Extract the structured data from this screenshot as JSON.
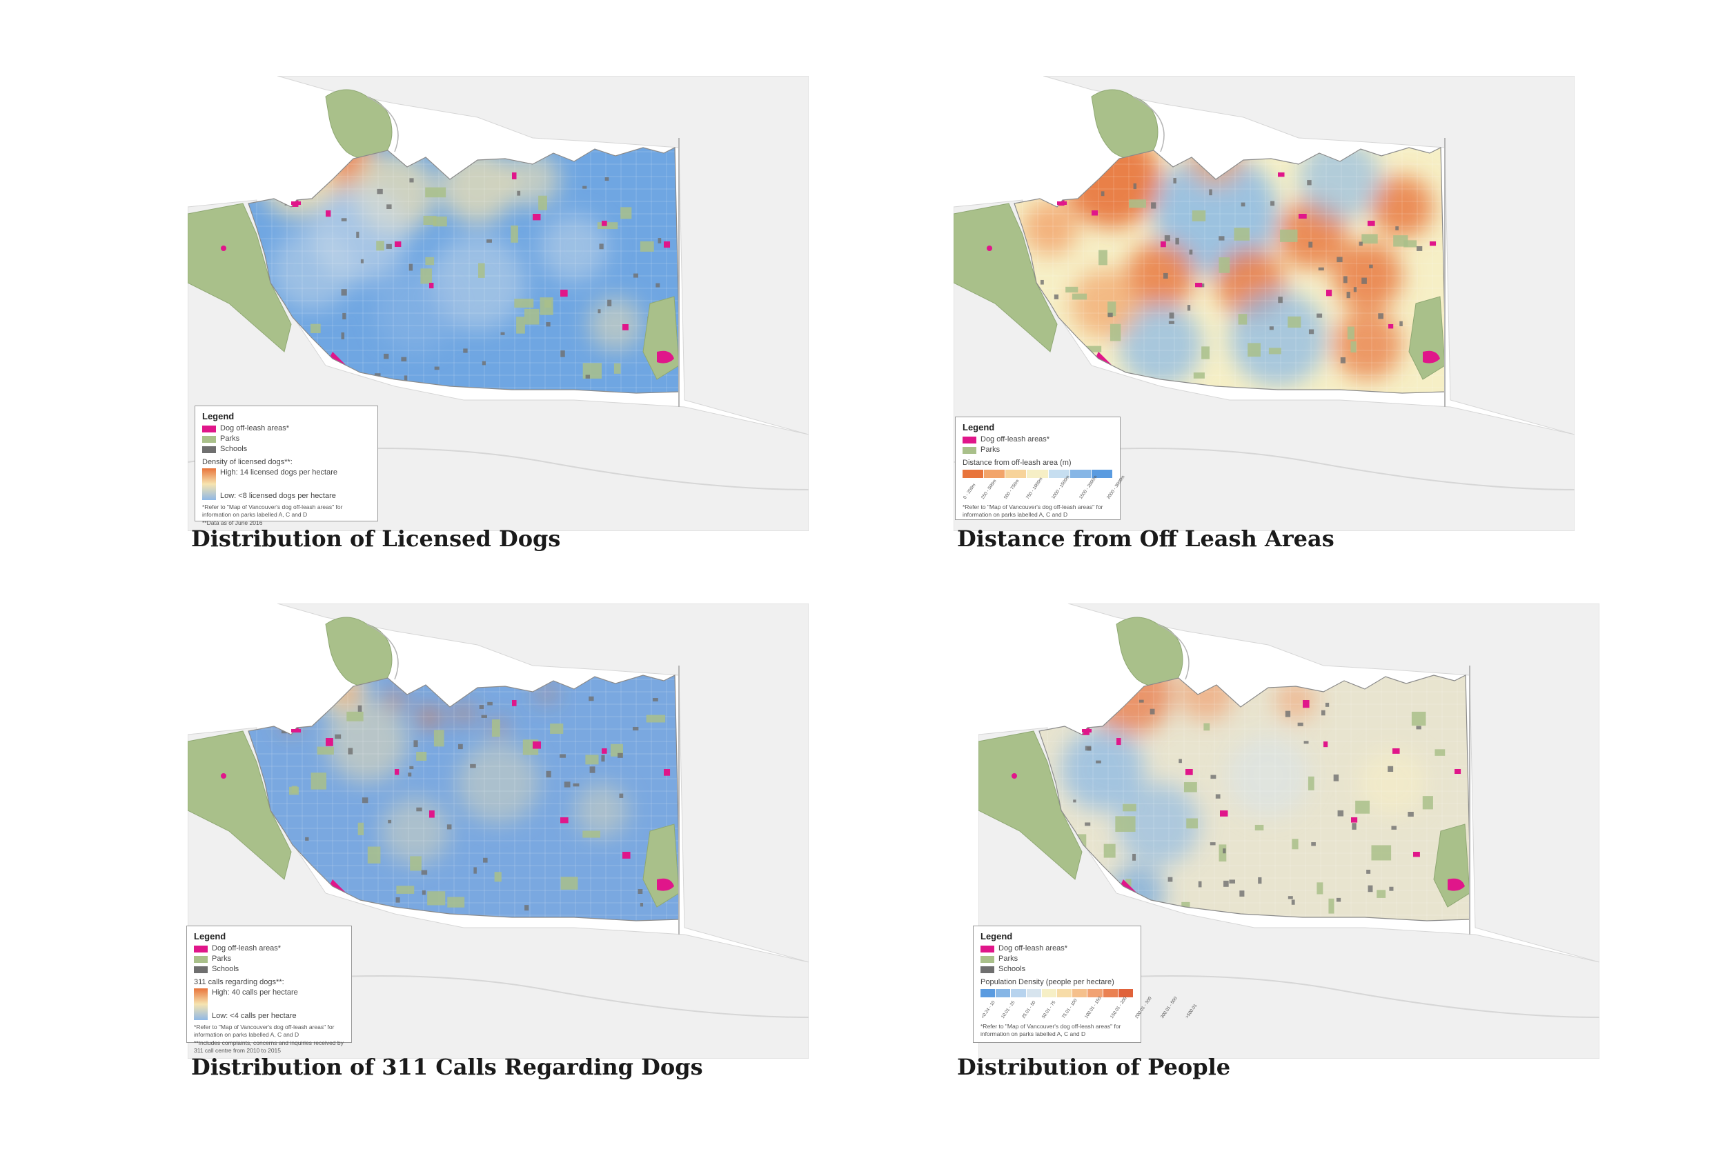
{
  "colors": {
    "off_leash": "#e0168a",
    "parks": "#a9c08a",
    "schools": "#6f6f6f",
    "water": "#ffffff",
    "land_bg": "#eeeeee",
    "road": "#c9c9c9"
  },
  "panels": [
    {
      "caption": "Distribution of Licensed Dogs",
      "scheme": "dogs",
      "legend": {
        "title": "Legend",
        "items": [
          {
            "label": "Dog off-leash areas*",
            "color": "#e0168a"
          },
          {
            "label": "Parks",
            "color": "#a9c08a"
          },
          {
            "label": "Schools",
            "color": "#6f6f6f"
          }
        ],
        "subtitle": "Density of licensed dogs**:",
        "high": "High: 14 licensed dogs per hectare",
        "low": "Low: <8 licensed dogs per hectare",
        "notes": [
          "*Refer to \"Map of Vancouver's dog off-leash areas\" for information on parks labelled A, C and D",
          "**Data as of June 2016"
        ]
      }
    },
    {
      "caption": "Distance from Off Leash Areas",
      "scheme": "distance",
      "legend": {
        "title": "Legend",
        "items": [
          {
            "label": "Dog off-leash areas*",
            "color": "#e0168a"
          },
          {
            "label": "Parks",
            "color": "#a9c08a"
          }
        ],
        "subtitle": "Distance from off-leash area (m)",
        "classes": [
          "0 - 250m",
          "250 - 500m",
          "500 - 750m",
          "750 - 1000m",
          "1000 - 1500m",
          "1500 - 2000m",
          "2000 - 3000m"
        ],
        "class_colors": [
          "#e8743b",
          "#f2a46a",
          "#f7d39a",
          "#f6efc6",
          "#c6def0",
          "#86b6e6",
          "#5a9be0"
        ],
        "notes": [
          "*Refer to \"Map of Vancouver's dog off-leash areas\" for information on parks labelled A, C and D"
        ]
      }
    },
    {
      "caption": "Distribution of 311 Calls Regarding Dogs",
      "scheme": "calls",
      "legend": {
        "title": "Legend",
        "items": [
          {
            "label": "Dog off-leash areas*",
            "color": "#e0168a"
          },
          {
            "label": "Parks",
            "color": "#a9c08a"
          },
          {
            "label": "Schools",
            "color": "#6f6f6f"
          }
        ],
        "subtitle": "311 calls regarding dogs**:",
        "high": "High: 40 calls per hectare",
        "low": "Low: <4 calls per hectare",
        "notes": [
          "*Refer to \"Map of Vancouver's dog off-leash areas\" for information on parks labelled A, C and D",
          "**Includes complaints, concerns and inquiries received by 311 call centre from 2010 to 2015"
        ]
      }
    },
    {
      "caption": "Distribution of People",
      "scheme": "people",
      "legend": {
        "title": "Legend",
        "items": [
          {
            "label": "Dog off-leash areas*",
            "color": "#e0168a"
          },
          {
            "label": "Parks",
            "color": "#a9c08a"
          },
          {
            "label": "Schools",
            "color": "#6f6f6f"
          }
        ],
        "subtitle": "Population Density (people per hectare)",
        "classes": [
          "<0.24 - 10",
          "10.01 - 25",
          "25.01 - 50",
          "50.01 - 75",
          "75.01 - 100",
          "100.01 - 150",
          "150.01 - 200",
          "200.01 - 300",
          "300.01 - 500",
          ">500.01"
        ],
        "class_colors": [
          "#5a9be0",
          "#86b6e6",
          "#b7d3ee",
          "#d7e4ee",
          "#f6efc6",
          "#f7dca8",
          "#f5c08c",
          "#f1a273",
          "#ea8152",
          "#e0623a"
        ],
        "notes": [
          "*Refer to \"Map of Vancouver's dog off-leash areas\" for information on parks labelled A, C and D"
        ]
      }
    }
  ]
}
